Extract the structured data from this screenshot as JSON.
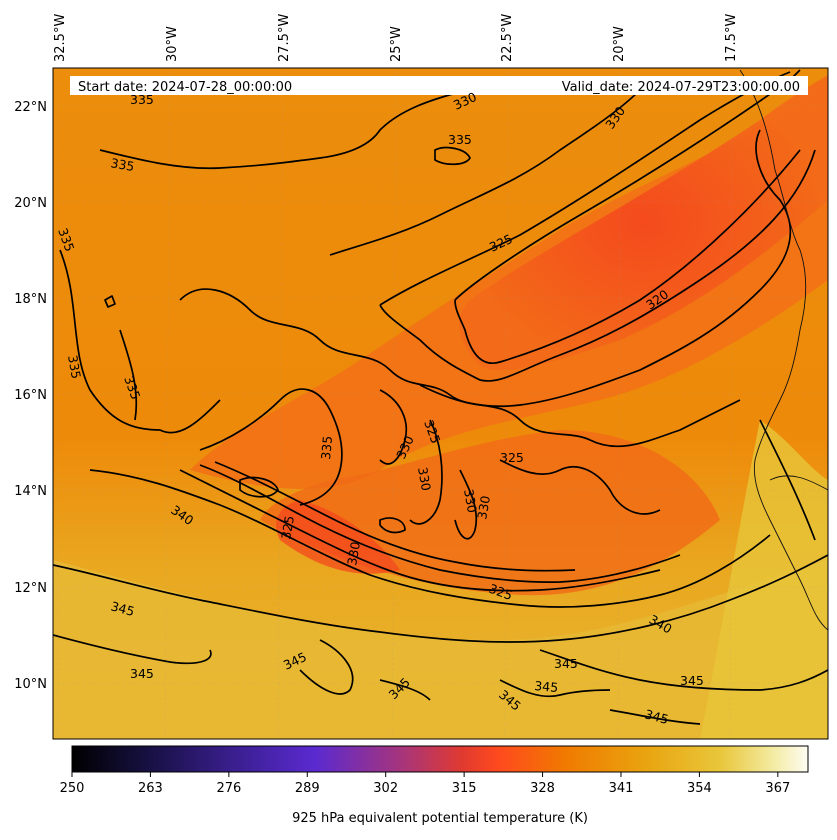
{
  "header": {
    "start_date": "Start date: 2024-07-28_00:00:00",
    "valid_date": "Valid_date: 2024-07-29T23:00:00.00"
  },
  "longitude_labels": [
    "32.5°W",
    "30°W",
    "27.5°W",
    "25°W",
    "22.5°W",
    "20°W",
    "17.5°W"
  ],
  "latitude_labels": [
    "22°N",
    "20°N",
    "18°N",
    "16°N",
    "14°N",
    "12°N",
    "10°N"
  ],
  "contour_labels": {
    "c335": "335",
    "c330": "330",
    "c325": "325",
    "c320": "320",
    "c340": "340",
    "c345": "345"
  },
  "colorbar": {
    "ticks": [
      "250",
      "263",
      "276",
      "289",
      "302",
      "315",
      "328",
      "341",
      "354",
      "367"
    ],
    "label": "925 hPa equivalent potential temperature (K)",
    "min": 250,
    "max": 372,
    "stops": [
      "#000000",
      "#1a1040",
      "#3a1f8f",
      "#5a2ad0",
      "#a0307a",
      "#e23a2a",
      "#ff4a1e",
      "#f07a00",
      "#e8a010",
      "#e9c233",
      "#f2e79a",
      "#fdfcf2"
    ]
  },
  "map_colors": {
    "cold_core": "#f4481e",
    "warm_mid": "#ef8a0a",
    "warm_south": "#e8b42c",
    "land_east": "#e7c53a"
  }
}
